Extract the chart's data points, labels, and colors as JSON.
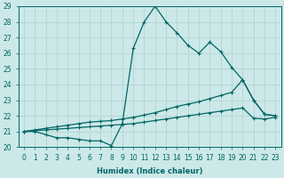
{
  "xlabel": "Humidex (Indice chaleur)",
  "ylabel": "",
  "xlim": [
    -0.5,
    23.5
  ],
  "ylim": [
    20,
    29
  ],
  "yticks": [
    20,
    21,
    22,
    23,
    24,
    25,
    26,
    27,
    28,
    29
  ],
  "xticks": [
    0,
    1,
    2,
    3,
    4,
    5,
    6,
    7,
    8,
    9,
    10,
    11,
    12,
    13,
    14,
    15,
    16,
    17,
    18,
    19,
    20,
    21,
    22,
    23
  ],
  "bg_color": "#cce8e8",
  "grid_color": "#b0d0d0",
  "line_color": "#006666",
  "line1_x": [
    0,
    1,
    2,
    3,
    4,
    5,
    6,
    7,
    8,
    9,
    10,
    11,
    12,
    13,
    14,
    15,
    16,
    17,
    18,
    19,
    20,
    21,
    22,
    23
  ],
  "line1_y": [
    21.0,
    21.0,
    20.8,
    20.6,
    20.6,
    20.5,
    20.4,
    20.4,
    20.1,
    21.5,
    26.3,
    28.0,
    29.0,
    28.0,
    27.3,
    26.5,
    26.0,
    26.7,
    26.1,
    25.1,
    24.3,
    23.0,
    22.1,
    22.0
  ],
  "line2_x": [
    0,
    1,
    2,
    3,
    4,
    5,
    6,
    7,
    8,
    9,
    10,
    11,
    12,
    13,
    14,
    15,
    16,
    17,
    18,
    19,
    20,
    21,
    22,
    23
  ],
  "line2_y": [
    21.0,
    21.1,
    21.2,
    21.3,
    21.4,
    21.5,
    21.6,
    21.65,
    21.7,
    21.8,
    21.9,
    22.05,
    22.2,
    22.4,
    22.6,
    22.75,
    22.9,
    23.1,
    23.3,
    23.5,
    24.3,
    23.0,
    22.1,
    22.0
  ],
  "line3_x": [
    0,
    1,
    2,
    3,
    4,
    5,
    6,
    7,
    8,
    9,
    10,
    11,
    12,
    13,
    14,
    15,
    16,
    17,
    18,
    19,
    20,
    21,
    22,
    23
  ],
  "line3_y": [
    21.0,
    21.05,
    21.1,
    21.15,
    21.2,
    21.25,
    21.3,
    21.35,
    21.4,
    21.45,
    21.5,
    21.6,
    21.7,
    21.8,
    21.9,
    22.0,
    22.1,
    22.2,
    22.3,
    22.4,
    22.5,
    21.85,
    21.8,
    21.9
  ],
  "marker": "+",
  "markersize": 3.5,
  "linewidth": 0.9
}
